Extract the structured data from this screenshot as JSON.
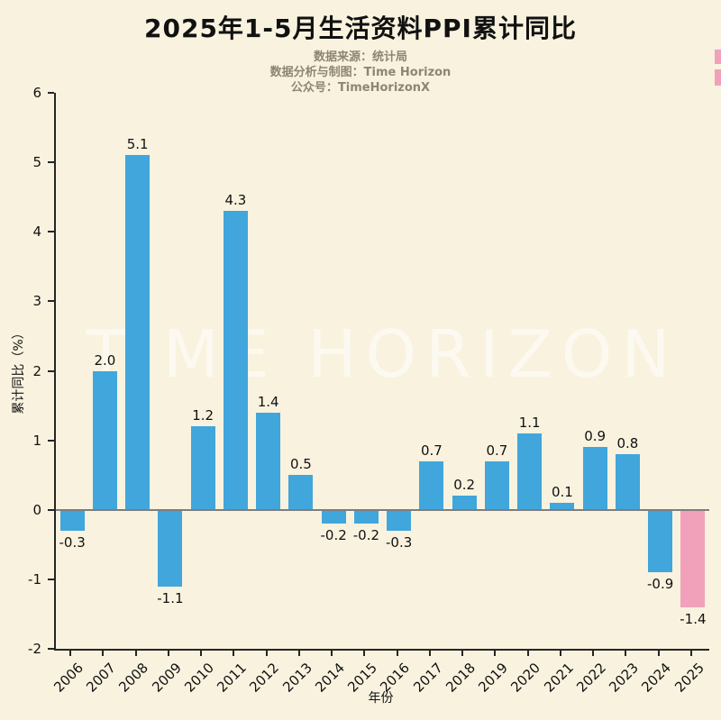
{
  "header": {
    "title": "2025年1-5月生活资料PPI累计同比",
    "source": "数据来源：统计局",
    "credit": "数据分析与制图：Time Horizon",
    "account": "公众号：TimeHorizonX"
  },
  "chart_data": {
    "type": "bar",
    "title": "2025年1-5月生活资料PPI累计同比",
    "categories": [
      "2006",
      "2007",
      "2008",
      "2009",
      "2010",
      "2011",
      "2012",
      "2013",
      "2014",
      "2015",
      "2016",
      "2017",
      "2018",
      "2019",
      "2020",
      "2021",
      "2022",
      "2023",
      "2024",
      "2025"
    ],
    "values": [
      -0.3,
      2.0,
      5.1,
      -1.1,
      1.2,
      4.3,
      1.4,
      0.5,
      -0.2,
      -0.2,
      -0.3,
      0.7,
      0.2,
      0.7,
      1.1,
      0.1,
      0.9,
      0.8,
      -0.9,
      -1.4
    ],
    "xlabel": "年份",
    "ylabel": "累计同比（%）",
    "ylim": [
      -2,
      6
    ],
    "yticks": [
      6,
      5,
      4,
      3,
      2,
      1,
      0,
      -1,
      -2
    ],
    "bar_color": "#41a6db",
    "highlight_color": "#f1a2ba",
    "highlight_category": "2025",
    "watermark": "TIME HORIZON",
    "background_color": "#f8f2df",
    "grid": false,
    "legend": null
  }
}
